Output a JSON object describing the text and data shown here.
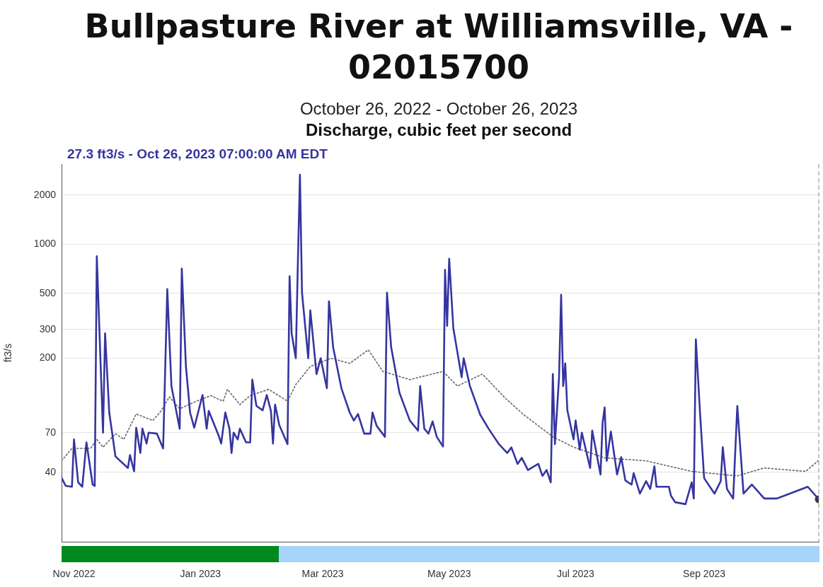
{
  "chart_data": {
    "type": "line",
    "title": "Bullpasture River at Williamsville, VA - 02015700",
    "subtitle": "October 26, 2022 - October 26, 2023",
    "ylabel": "ft3/s",
    "annotations": [
      "Discharge, cubic feet per second",
      "27.3 ft3/s - Oct 26, 2023 07:00:00 AM EDT"
    ],
    "log": "y",
    "grid": "y",
    "legend": false,
    "xlim": [
      "2022-10-26",
      "2023-10-26T07:00"
    ],
    "xticks": [
      {
        "value": "2022-11-01",
        "label": "Nov 2022"
      },
      {
        "value": "2023-01-01",
        "label": "Jan 2023"
      },
      {
        "value": "2023-03-01",
        "label": "Mar 2023"
      },
      {
        "value": "2023-05-01",
        "label": "May 2023"
      },
      {
        "value": "2023-07-01",
        "label": "Jul 2023"
      },
      {
        "value": "2023-09-01",
        "label": "Sep 2023"
      }
    ],
    "ylim": [
      15,
      3100
    ],
    "yticks": [
      40,
      70,
      200,
      300,
      500,
      1000,
      2000
    ],
    "ref_lines": [
      {
        "axis": "x",
        "value": "2023-10-26T07:00",
        "color": "#888888",
        "line_style": "dashed"
      }
    ],
    "series": [
      {
        "color": "#3535a0",
        "line_style": "solid",
        "marker": "none",
        "x": [
          "2022-10-26",
          "2022-10-28",
          "2022-10-31",
          "2022-11-01",
          "2022-11-03",
          "2022-11-05",
          "2022-11-07",
          "2022-11-10",
          "2022-11-11",
          "2022-11-12",
          "2022-11-15",
          "2022-11-16",
          "2022-11-18",
          "2022-11-21",
          "2022-11-27",
          "2022-11-28",
          "2022-11-30",
          "2022-12-01",
          "2022-12-03",
          "2022-12-04",
          "2022-12-06",
          "2022-12-07",
          "2022-12-11",
          "2022-12-14",
          "2022-12-16",
          "2022-12-18",
          "2022-12-22",
          "2022-12-23",
          "2022-12-25",
          "2022-12-27",
          "2022-12-29",
          "2023-01-02",
          "2023-01-04",
          "2023-01-05",
          "2023-01-10",
          "2023-01-11",
          "2023-01-13",
          "2023-01-15",
          "2023-01-16",
          "2023-01-17",
          "2023-01-19",
          "2023-01-20",
          "2023-01-23",
          "2023-01-25",
          "2023-01-26",
          "2023-01-28",
          "2023-01-31",
          "2023-02-02",
          "2023-02-04",
          "2023-02-05",
          "2023-02-06",
          "2023-02-08",
          "2023-02-12",
          "2023-02-13",
          "2023-02-14",
          "2023-02-16",
          "2023-02-17",
          "2023-02-18",
          "2023-02-19",
          "2023-02-22",
          "2023-02-23",
          "2023-02-26",
          "2023-02-28",
          "2023-03-03",
          "2023-03-04",
          "2023-03-06",
          "2023-03-10",
          "2023-03-14",
          "2023-03-16",
          "2023-03-18",
          "2023-03-21",
          "2023-03-24",
          "2023-03-25",
          "2023-03-27",
          "2023-03-31",
          "2023-04-01",
          "2023-04-03",
          "2023-04-07",
          "2023-04-12",
          "2023-04-16",
          "2023-04-17",
          "2023-04-19",
          "2023-04-21",
          "2023-04-23",
          "2023-04-25",
          "2023-04-28",
          "2023-04-29",
          "2023-04-30",
          "2023-05-01",
          "2023-05-03",
          "2023-05-07",
          "2023-05-08",
          "2023-05-11",
          "2023-05-16",
          "2023-05-20",
          "2023-05-25",
          "2023-05-29",
          "2023-05-31",
          "2023-06-03",
          "2023-06-05",
          "2023-06-08",
          "2023-06-13",
          "2023-06-15",
          "2023-06-17",
          "2023-06-19",
          "2023-06-20",
          "2023-06-21",
          "2023-06-23",
          "2023-06-24",
          "2023-06-25",
          "2023-06-26",
          "2023-06-27",
          "2023-06-30",
          "2023-07-01",
          "2023-07-03",
          "2023-07-04",
          "2023-07-08",
          "2023-07-09",
          "2023-07-13",
          "2023-07-14",
          "2023-07-15",
          "2023-07-16",
          "2023-07-18",
          "2023-07-21",
          "2023-07-23",
          "2023-07-25",
          "2023-07-28",
          "2023-07-29",
          "2023-08-01",
          "2023-08-04",
          "2023-08-06",
          "2023-08-08",
          "2023-08-09",
          "2023-08-15",
          "2023-08-16",
          "2023-08-18",
          "2023-08-23",
          "2023-08-26",
          "2023-08-27",
          "2023-08-28",
          "2023-08-30",
          "2023-09-01",
          "2023-09-06",
          "2023-09-09",
          "2023-09-10",
          "2023-09-12",
          "2023-09-15",
          "2023-09-17",
          "2023-09-20",
          "2023-09-24",
          "2023-09-30",
          "2023-10-06",
          "2023-10-21",
          "2023-10-26T07:00"
        ],
        "values": [
          37,
          33,
          32.6,
          63.6,
          34.7,
          32.6,
          61,
          33.6,
          33,
          845,
          70,
          284,
          93,
          50,
          42.5,
          51,
          40.5,
          75,
          52.5,
          74,
          60,
          70,
          69,
          56,
          530,
          135,
          74,
          709,
          178,
          93,
          75,
          119,
          74,
          95,
          66,
          60,
          93,
          74,
          52.5,
          70,
          63.6,
          74,
          61,
          61,
          148,
          102,
          96,
          119,
          95,
          60,
          104,
          78,
          59.5,
          637,
          284,
          200,
          770,
          2670,
          505,
          200,
          393,
          160,
          200,
          131,
          447,
          234,
          131,
          93,
          83,
          91,
          69,
          69,
          93,
          77,
          66,
          505,
          234,
          123,
          83,
          72,
          135,
          74,
          69,
          82,
          66,
          57.5,
          696,
          316,
          815,
          306,
          153,
          200,
          135,
          90,
          74,
          59.5,
          52.5,
          56.8,
          45,
          49,
          41.3,
          45,
          38,
          41.3,
          34.7,
          160,
          59.5,
          153,
          490,
          135,
          186,
          96,
          63.6,
          83,
          55,
          70,
          42.5,
          72,
          38.7,
          80,
          100,
          47,
          71,
          38.7,
          49.5,
          35.6,
          33.6,
          39.5,
          29.6,
          35.3,
          31.6,
          43.5,
          32.6,
          32.6,
          28.7,
          26.2,
          25.5,
          34.7,
          27.6,
          261,
          93,
          36.8,
          29.6,
          35.3,
          57,
          31.6,
          27.6,
          102,
          29.6,
          33.6,
          27.6,
          27.6,
          32.6,
          27.3
        ]
      },
      {
        "color": "#666666",
        "line_style": "dotted",
        "marker": "none",
        "x": [
          "2022-10-26",
          "2022-10-31",
          "2022-11-09",
          "2022-11-12",
          "2022-11-15",
          "2022-11-21",
          "2022-11-25",
          "2022-12-01",
          "2022-12-09",
          "2022-12-13",
          "2022-12-17",
          "2022-12-22",
          "2022-12-30",
          "2023-01-06",
          "2023-01-12",
          "2023-01-14",
          "2023-01-20",
          "2023-01-25",
          "2023-02-03",
          "2023-02-12",
          "2023-02-16",
          "2023-02-23",
          "2023-03-05",
          "2023-03-14",
          "2023-03-23",
          "2023-03-30",
          "2023-04-12",
          "2023-04-28",
          "2023-05-05",
          "2023-05-17",
          "2023-05-28",
          "2023-06-06",
          "2023-06-20",
          "2023-06-30",
          "2023-07-15",
          "2023-08-04",
          "2023-08-26",
          "2023-09-17",
          "2023-09-30",
          "2023-10-20",
          "2023-10-26"
        ],
        "values": [
          47,
          56,
          56,
          63.6,
          57,
          69,
          63.6,
          91,
          83,
          95,
          116,
          98,
          109,
          118,
          109,
          129,
          104,
          118,
          129,
          109,
          138,
          178,
          200,
          186,
          225,
          166,
          148,
          166,
          135,
          160,
          114,
          90,
          66,
          57,
          49,
          47,
          40.5,
          38,
          42.5,
          40.5,
          47
        ]
      },
      {
        "type": "scatter",
        "color": "#333333",
        "marker": "circle",
        "x": [
          "2023-10-26T07:00"
        ],
        "values": [
          27.3
        ]
      }
    ]
  }
}
